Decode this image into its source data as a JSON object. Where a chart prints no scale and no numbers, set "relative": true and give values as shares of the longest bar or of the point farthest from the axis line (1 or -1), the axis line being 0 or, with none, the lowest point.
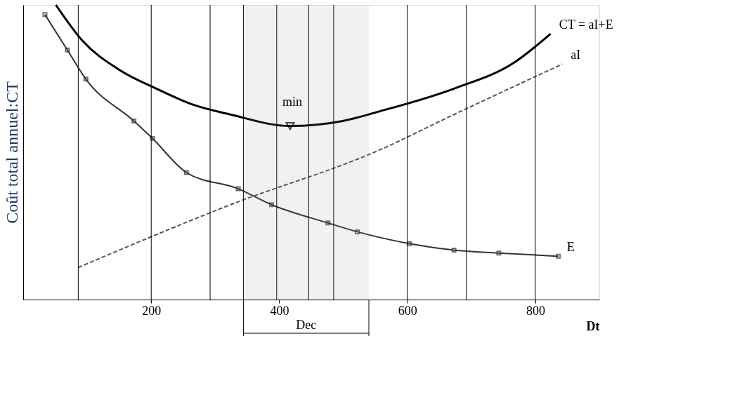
{
  "chart_data": {
    "type": "line",
    "relative": true,
    "xlabel": "Dt",
    "ylabel": "Coût total annuel:CT",
    "xlim": [
      0,
      900
    ],
    "xticks": [
      200,
      400,
      600,
      800
    ],
    "grid": false,
    "series": [
      {
        "name": "CT = aI+E",
        "color": "#000000",
        "line_style": "solid",
        "marker": "none",
        "x": [
          51,
          92,
          150,
          208,
          266,
          324,
          417,
          499,
          557,
          673,
          766,
          824
        ],
        "values": [
          1.0,
          0.88,
          0.78,
          0.716,
          0.661,
          0.628,
          0.589,
          0.606,
          0.639,
          0.716,
          0.803,
          0.902
        ]
      },
      {
        "name": "aI",
        "color": "#555555",
        "line_style": "dashed",
        "marker": "none",
        "x": [
          86,
          324,
          557,
          673,
          842
        ],
        "values": [
          0.109,
          0.322,
          0.508,
          0.628,
          0.799
        ]
      },
      {
        "name": "E",
        "color": "#333333",
        "line_style": "solid",
        "marker": "square",
        "x": [
          34,
          69,
          98,
          173,
          202,
          255,
          336,
          388,
          476,
          522,
          603,
          673,
          743,
          836
        ],
        "values": [
          0.967,
          0.847,
          0.748,
          0.606,
          0.547,
          0.431,
          0.376,
          0.322,
          0.26,
          0.23,
          0.19,
          0.168,
          0.158,
          0.147
        ]
      }
    ],
    "ref_lines": [
      {
        "axis": "x",
        "value": 86
      },
      {
        "axis": "x",
        "value": 200
      },
      {
        "axis": "x",
        "value": 292
      },
      {
        "axis": "x",
        "value": 344
      },
      {
        "axis": "x",
        "value": 396
      },
      {
        "axis": "x",
        "value": 446
      },
      {
        "axis": "x",
        "value": 485
      },
      {
        "axis": "x",
        "value": 600
      },
      {
        "axis": "x",
        "value": 692
      },
      {
        "axis": "x",
        "value": 800
      }
    ],
    "bands": [
      {
        "axis": "x",
        "from": 344,
        "to": 540,
        "label": "Dec"
      }
    ],
    "annotations": [
      {
        "text": "min",
        "x": 417,
        "y": 0.589
      }
    ]
  }
}
